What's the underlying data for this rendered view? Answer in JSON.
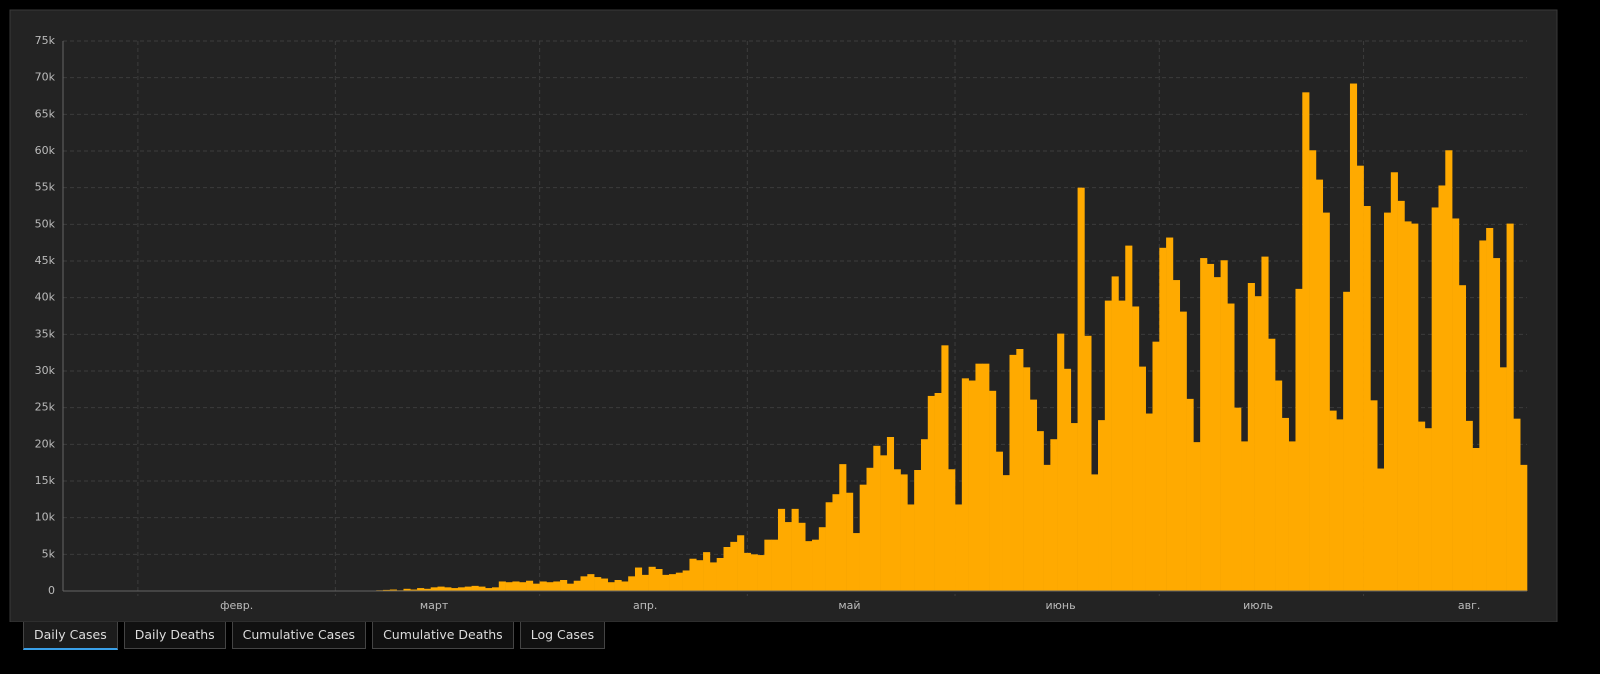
{
  "chart_data": {
    "type": "bar",
    "color": "#ffaa00",
    "grid": true,
    "ylim": [
      0,
      75000
    ],
    "yticks": [
      {
        "value": 0,
        "label": "0"
      },
      {
        "value": 5000,
        "label": "5k"
      },
      {
        "value": 10000,
        "label": "10k"
      },
      {
        "value": 15000,
        "label": "15k"
      },
      {
        "value": 20000,
        "label": "20k"
      },
      {
        "value": 25000,
        "label": "25k"
      },
      {
        "value": 30000,
        "label": "30k"
      },
      {
        "value": 35000,
        "label": "35k"
      },
      {
        "value": 40000,
        "label": "40k"
      },
      {
        "value": 45000,
        "label": "45k"
      },
      {
        "value": 50000,
        "label": "50k"
      },
      {
        "value": 55000,
        "label": "55k"
      },
      {
        "value": 60000,
        "label": "60k"
      },
      {
        "value": 65000,
        "label": "65k"
      },
      {
        "value": 70000,
        "label": "70k"
      },
      {
        "value": 75000,
        "label": "75k"
      }
    ],
    "categories": [
      null,
      null,
      null,
      null,
      null,
      null,
      null,
      null,
      null,
      null,
      null,
      null,
      null,
      null,
      null,
      null,
      null,
      null,
      null,
      null,
      null,
      null,
      null,
      null,
      null,
      "февр.",
      null,
      null,
      null,
      null,
      null,
      null,
      null,
      null,
      null,
      null,
      null,
      null,
      null,
      null,
      null,
      null,
      null,
      null,
      null,
      null,
      null,
      null,
      null,
      null,
      null,
      null,
      null,
      null,
      "март",
      null,
      null,
      null,
      null,
      null,
      null,
      null,
      null,
      null,
      null,
      null,
      null,
      null,
      null,
      null,
      null,
      null,
      null,
      null,
      null,
      null,
      null,
      null,
      null,
      null,
      null,
      null,
      null,
      null,
      null,
      "апр.",
      null,
      null,
      null,
      null,
      null,
      null,
      null,
      null,
      null,
      null,
      null,
      null,
      null,
      null,
      null,
      null,
      null,
      null,
      null,
      null,
      null,
      null,
      null,
      null,
      null,
      null,
      null,
      null,
      null,
      "май",
      null,
      null,
      null,
      null,
      null,
      null,
      null,
      null,
      null,
      null,
      null,
      null,
      null,
      null,
      null,
      null,
      null,
      null,
      null,
      null,
      null,
      null,
      null,
      null,
      null,
      null,
      null,
      null,
      null,
      null,
      "июнь",
      null,
      null,
      null,
      null,
      null,
      null,
      null,
      null,
      null,
      null,
      null,
      null,
      null,
      null,
      null,
      null,
      null,
      null,
      null,
      null,
      null,
      null,
      null,
      null,
      null,
      null,
      null,
      null,
      "июль",
      null,
      null,
      null,
      null,
      null,
      null,
      null,
      null,
      null,
      null,
      null,
      null,
      null,
      null,
      null,
      null,
      null,
      null,
      null,
      null,
      null,
      null,
      null,
      null,
      null,
      null,
      null,
      null,
      null,
      null,
      "авг.",
      null,
      null,
      null,
      null,
      null,
      null,
      null,
      null
    ],
    "values": [
      0,
      0,
      0,
      0,
      0,
      0,
      0,
      0,
      0,
      0,
      0,
      0,
      0,
      0,
      0,
      0,
      0,
      0,
      0,
      0,
      0,
      0,
      0,
      0,
      0,
      0,
      0,
      0,
      0,
      0,
      0,
      0,
      0,
      0,
      0,
      0,
      0,
      0,
      0,
      50,
      50,
      50,
      50,
      50,
      50,
      50,
      100,
      150,
      200,
      100,
      300,
      200,
      400,
      300,
      500,
      600,
      500,
      400,
      500,
      600,
      700,
      600,
      400,
      500,
      1300,
      1200,
      1300,
      1200,
      1400,
      1000,
      1300,
      1200,
      1300,
      1500,
      1000,
      1400,
      2000,
      2300,
      1900,
      1700,
      1200,
      1500,
      1300,
      2000,
      3200,
      2200,
      3300,
      3000,
      2200,
      2300,
      2500,
      2800,
      4400,
      4200,
      5300,
      3900,
      4500,
      6000,
      6700,
      7600,
      5200,
      5000,
      4900,
      7000,
      7000,
      11200,
      9400,
      11200,
      9300,
      6800,
      7000,
      8700,
      12100,
      13200,
      17300,
      13400,
      7900,
      14500,
      16800,
      19800,
      18500,
      21000,
      16600,
      15900,
      11800,
      16500,
      20700,
      26600,
      27000,
      33500,
      16600,
      11800,
      29000,
      28700,
      31000,
      31000,
      27300,
      19000,
      15800,
      32200,
      33000,
      30500,
      26100,
      21800,
      17200,
      20700,
      35100,
      30300,
      22900,
      55000,
      34800,
      15900,
      23300,
      39600,
      42900,
      39600,
      47100,
      38800,
      30600,
      24200,
      34000,
      46800,
      48200,
      42400,
      38100,
      26200,
      20300,
      45400,
      44600,
      42800,
      45100,
      39200,
      25000,
      20400,
      42000,
      40200,
      45600,
      34400,
      28700,
      23600,
      20400,
      41200,
      68000,
      60100,
      56100,
      51600,
      24600,
      23400,
      40800,
      69200,
      58000,
      52500,
      26000,
      16700,
      51600,
      57100,
      53200,
      50400,
      50100,
      23100,
      22200,
      52300,
      55300,
      60100,
      50800,
      41700,
      23200,
      19500,
      47800,
      49500,
      45400,
      30500,
      50100,
      23500,
      17200
    ]
  },
  "tabs": [
    "Daily Cases",
    "Daily Deaths",
    "Cumulative Cases",
    "Cumulative Deaths",
    "Log Cases"
  ]
}
